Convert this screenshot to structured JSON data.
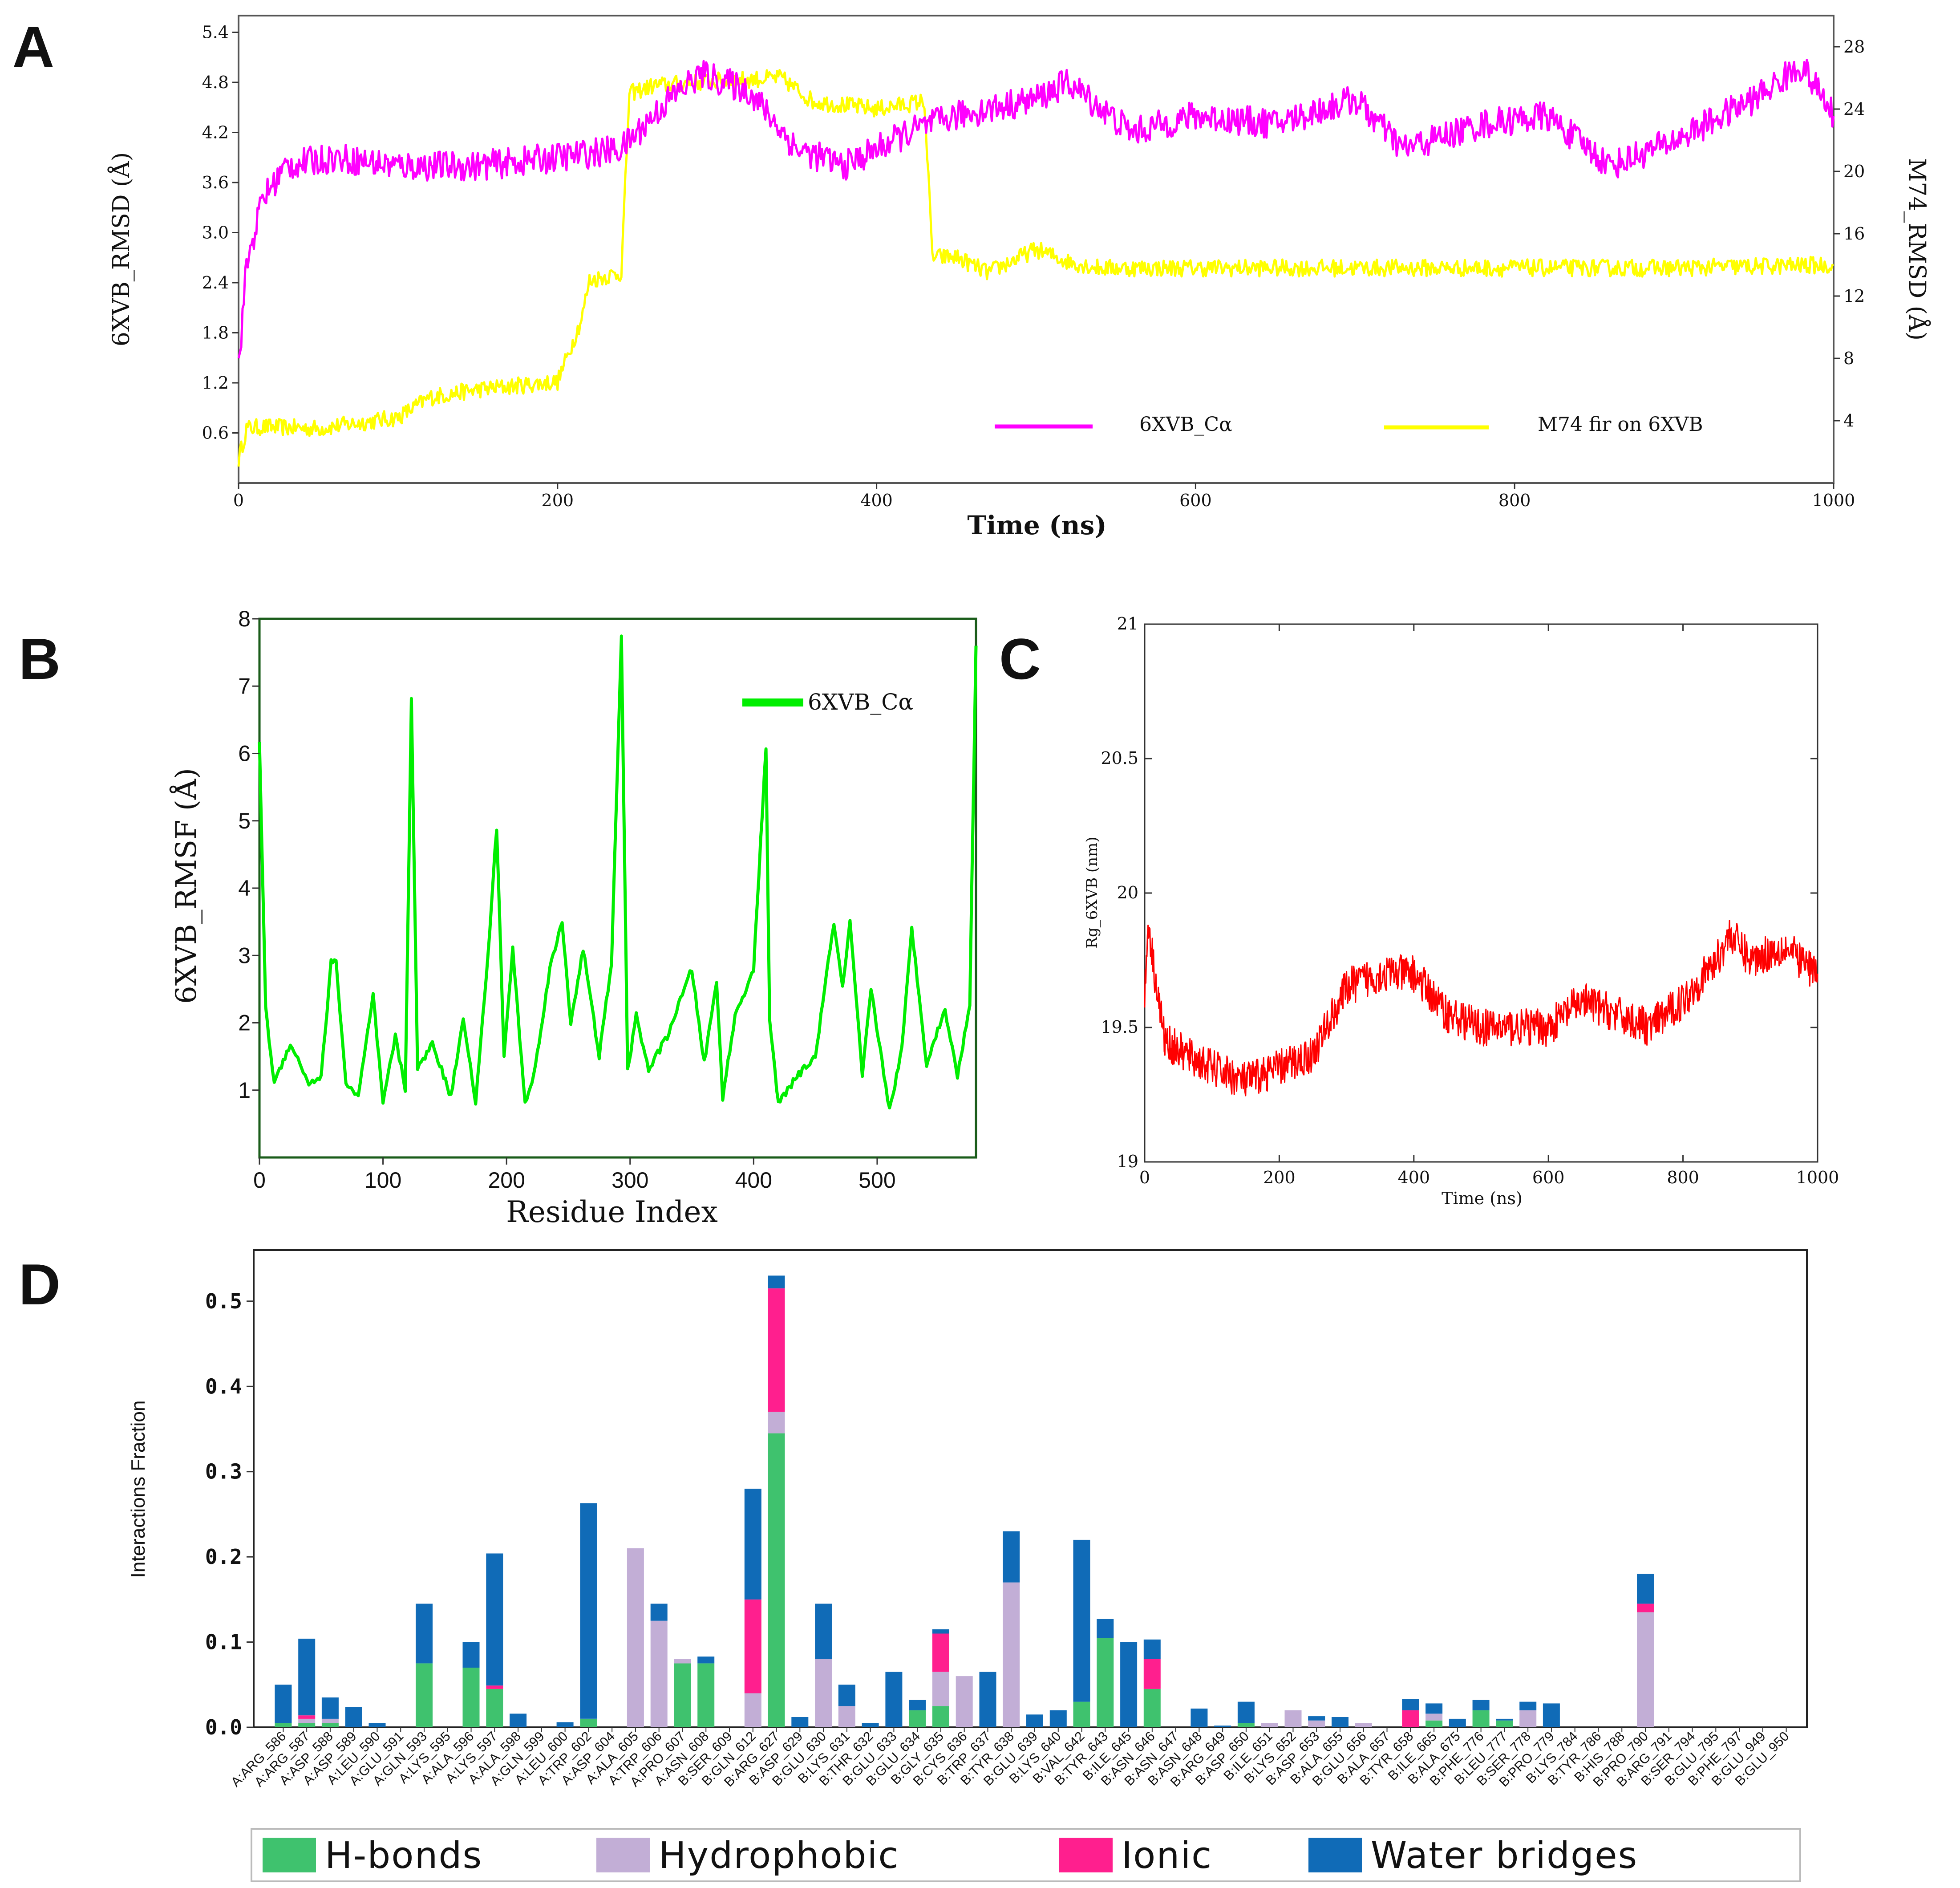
{
  "panels": {
    "a": "A",
    "b": "B",
    "c": "C",
    "d": "D"
  },
  "chart_data": [
    {
      "panel": "A",
      "type": "line",
      "xlabel": "Time (ns)",
      "ylabel_left": "6XVB_RMSD (Å)",
      "ylabel_right": "M74_RMSD (Å)",
      "xlim": [
        0,
        1000
      ],
      "ylim_left": [
        0,
        5.6
      ],
      "ylim_right": [
        0,
        30
      ],
      "x_ticks": [
        "0",
        "200",
        "400",
        "600",
        "800",
        "1000"
      ],
      "y_ticks_left": [
        "0.6",
        "1.2",
        "1.8",
        "2.4",
        "3.0",
        "3.6",
        "4.2",
        "4.8",
        "5.4"
      ],
      "y_ticks_right": [
        "4",
        "8",
        "12",
        "16",
        "20",
        "24",
        "28"
      ],
      "legend_position": "bottom-right",
      "series": [
        {
          "name": "6XVB_Cα",
          "axis": "left",
          "color": "#ff00ff",
          "x": [
            0,
            5,
            15,
            30,
            60,
            100,
            150,
            200,
            240,
            270,
            290,
            320,
            350,
            380,
            420,
            450,
            500,
            520,
            560,
            600,
            650,
            700,
            730,
            780,
            820,
            860,
            900,
            950,
            980,
            1000
          ],
          "y": [
            1.4,
            2.6,
            3.4,
            3.8,
            3.9,
            3.8,
            3.8,
            3.9,
            4.0,
            4.6,
            4.9,
            4.7,
            4.0,
            3.8,
            4.2,
            4.4,
            4.6,
            4.8,
            4.2,
            4.4,
            4.3,
            4.6,
            4.0,
            4.3,
            4.4,
            3.8,
            4.1,
            4.6,
            5.0,
            4.4
          ]
        },
        {
          "name": "M74 fir on 6XVB",
          "axis": "right",
          "color": "#ffff00",
          "x": [
            0,
            5,
            15,
            50,
            100,
            120,
            150,
            200,
            215,
            220,
            240,
            245,
            260,
            300,
            340,
            360,
            400,
            430,
            435,
            450,
            470,
            500,
            520,
            540,
            600,
            700,
            800,
            900,
            1000
          ],
          "y": [
            1.5,
            3.5,
            3.6,
            3.5,
            4.2,
            5.5,
            6.0,
            6.5,
            10.5,
            13.0,
            13.5,
            25.0,
            25.5,
            25.8,
            26.0,
            24.5,
            24.0,
            24.5,
            14.5,
            14.5,
            13.5,
            15.0,
            14.2,
            13.8,
            13.8,
            13.8,
            13.8,
            13.8,
            14.0
          ]
        }
      ]
    },
    {
      "panel": "B",
      "type": "line",
      "xlabel": "Residue Index",
      "ylabel": "6XVB_RMSF (Å)",
      "xlim": [
        0,
        580
      ],
      "ylim": [
        0,
        8
      ],
      "x_ticks": [
        "0",
        "100",
        "200",
        "300",
        "400",
        "500"
      ],
      "y_ticks": [
        "1",
        "2",
        "3",
        "4",
        "5",
        "6",
        "7",
        "8"
      ],
      "legend_position": "top-right",
      "series": [
        {
          "name": "6XVB_Cα",
          "color": "#00ee00",
          "x": [
            0,
            5,
            12,
            25,
            40,
            50,
            58,
            62,
            70,
            80,
            92,
            100,
            110,
            118,
            123,
            128,
            140,
            155,
            165,
            175,
            185,
            192,
            198,
            205,
            215,
            222,
            235,
            245,
            252,
            262,
            275,
            285,
            293,
            298,
            305,
            315,
            330,
            350,
            360,
            370,
            375,
            385,
            400,
            410,
            413,
            420,
            435,
            450,
            465,
            472,
            478,
            488,
            495,
            510,
            520,
            528,
            540,
            555,
            565,
            575,
            580
          ],
          "y": [
            6.2,
            2.2,
            1.1,
            1.7,
            1.1,
            1.2,
            2.9,
            2.9,
            1.1,
            0.9,
            2.4,
            0.8,
            1.8,
            1.0,
            6.8,
            1.3,
            1.7,
            0.9,
            2.1,
            0.8,
            3.0,
            4.9,
            1.5,
            3.1,
            0.8,
            1.2,
            2.8,
            3.5,
            2.0,
            3.1,
            1.5,
            2.9,
            7.7,
            1.3,
            2.1,
            1.3,
            1.8,
            2.8,
            1.4,
            2.6,
            0.9,
            2.1,
            2.8,
            6.1,
            2.0,
            0.8,
            1.2,
            1.5,
            3.5,
            2.5,
            3.5,
            1.2,
            2.5,
            0.7,
            1.6,
            3.4,
            1.4,
            2.2,
            1.2,
            2.3,
            7.6
          ]
        }
      ]
    },
    {
      "panel": "C",
      "type": "line",
      "xlabel": "Time (ns)",
      "ylabel": "Rg_6XVB (nm)",
      "xlim": [
        0,
        1000
      ],
      "ylim": [
        19,
        21
      ],
      "x_ticks": [
        "0",
        "200",
        "400",
        "600",
        "800",
        "1000"
      ],
      "y_ticks": [
        "19",
        "19.5",
        "20",
        "20.5",
        "21"
      ],
      "series": [
        {
          "name": "Rg",
          "color": "#ff0000",
          "x": [
            0,
            5,
            15,
            30,
            60,
            100,
            150,
            200,
            250,
            300,
            350,
            400,
            450,
            500,
            550,
            600,
            650,
            700,
            750,
            800,
            850,
            870,
            900,
            950,
            1000
          ],
          "y": [
            19.6,
            19.9,
            19.7,
            19.45,
            19.4,
            19.35,
            19.3,
            19.35,
            19.4,
            19.65,
            19.7,
            19.7,
            19.55,
            19.5,
            19.5,
            19.5,
            19.6,
            19.55,
            19.5,
            19.6,
            19.75,
            19.85,
            19.75,
            19.8,
            19.7
          ]
        }
      ]
    },
    {
      "panel": "D",
      "type": "bar",
      "stacked": true,
      "ylabel": "Interactions Fraction",
      "ylim": [
        0,
        0.56
      ],
      "y_ticks": [
        "0.0",
        "0.1",
        "0.2",
        "0.3",
        "0.4",
        "0.5"
      ],
      "legend_position": "bottom",
      "series": [
        {
          "name": "H-bonds",
          "color": "#3fc26e"
        },
        {
          "name": "Hydrophobic",
          "color": "#c2aed6"
        },
        {
          "name": "Ionic",
          "color": "#ff1f8e"
        },
        {
          "name": "Water bridges",
          "color": "#106bb7"
        }
      ],
      "categories": [
        "A:ARG_586",
        "A:ARG_587",
        "A:ASP_588",
        "A:ASP_589",
        "A:LEU_590",
        "A:GLU_591",
        "A:GLN_593",
        "A:LYS_595",
        "A:ALA_596",
        "A:LYS_597",
        "A:ALA_598",
        "A:GLN_599",
        "A:LEU_600",
        "A:TRP_602",
        "A:ASP_604",
        "A:ALA_605",
        "A:TRP_606",
        "A:PRO_607",
        "A:ASN_608",
        "B:SER_609",
        "B:GLN_612",
        "B:ARG_627",
        "B:ASP_629",
        "B:GLU_630",
        "B:LYS_631",
        "B:THR_632",
        "B:GLU_633",
        "B:GLU_634",
        "B:GLY_635",
        "B:CYS_636",
        "B:TRP_637",
        "B:TYR_638",
        "B:GLU_639",
        "B:LYS_640",
        "B:VAL_642",
        "B:TYR_643",
        "B:ILE_645",
        "B:ASN_646",
        "B:ASN_647",
        "B:ASN_648",
        "B:ARG_649",
        "B:ASP_650",
        "B:ILE_651",
        "B:LYS_652",
        "B:ASP_653",
        "B:ALA_655",
        "B:GLU_656",
        "B:ALA_657",
        "B:TYR_658",
        "B:ILE_665",
        "B:ALA_675",
        "B:PHE_776",
        "B:LEU_777",
        "B:SER_778",
        "B:PRO_779",
        "B:LYS_784",
        "B:TYR_786",
        "B:HIS_788",
        "B:PRO_790",
        "B:ARG_791",
        "B:SER_794",
        "B:GLU_795",
        "B:PHE_797",
        "B:GLU_949",
        "B:GLU_950"
      ],
      "h_bonds": [
        0.005,
        0.005,
        0.005,
        0,
        0,
        0,
        0.075,
        0,
        0.07,
        0.045,
        0,
        0,
        0,
        0.01,
        0,
        0,
        0,
        0.075,
        0.075,
        0,
        0,
        0.345,
        0,
        0,
        0,
        0,
        0,
        0.02,
        0.025,
        0,
        0,
        0,
        0,
        0,
        0.03,
        0.105,
        0,
        0.045,
        0,
        0,
        0,
        0.005,
        0,
        0,
        0,
        0,
        0,
        0,
        0,
        0.008,
        0,
        0.02,
        0.008,
        0,
        0,
        0,
        0,
        0,
        0,
        0,
        0,
        0,
        0,
        0,
        0
      ],
      "hydrophobic": [
        0,
        0.005,
        0.005,
        0,
        0,
        0,
        0,
        0,
        0,
        0,
        0,
        0,
        0,
        0,
        0,
        0.21,
        0.125,
        0.005,
        0,
        0,
        0.04,
        0.025,
        0,
        0.08,
        0.025,
        0,
        0,
        0,
        0.04,
        0.06,
        0,
        0.17,
        0,
        0,
        0,
        0,
        0,
        0,
        0,
        0,
        0,
        0,
        0.005,
        0.02,
        0.008,
        0,
        0.005,
        0,
        0,
        0.008,
        0,
        0,
        0,
        0.02,
        0,
        0,
        0,
        0,
        0.135,
        0,
        0,
        0,
        0,
        0,
        0
      ],
      "ionic": [
        0,
        0.004,
        0,
        0,
        0,
        0,
        0,
        0,
        0,
        0.004,
        0,
        0,
        0,
        0,
        0,
        0,
        0,
        0,
        0,
        0,
        0.11,
        0.145,
        0,
        0,
        0,
        0,
        0,
        0,
        0.045,
        0,
        0,
        0,
        0,
        0,
        0,
        0,
        0,
        0.035,
        0,
        0,
        0,
        0,
        0,
        0,
        0,
        0,
        0,
        0,
        0.02,
        0,
        0,
        0,
        0,
        0,
        0,
        0,
        0,
        0,
        0.01,
        0,
        0,
        0,
        0,
        0,
        0
      ],
      "water_bridges": [
        0.045,
        0.09,
        0.025,
        0.024,
        0.005,
        0,
        0.07,
        0,
        0.03,
        0.155,
        0.016,
        0,
        0.006,
        0.253,
        0,
        0,
        0.02,
        0,
        0.008,
        0,
        0.13,
        0.015,
        0.012,
        0.065,
        0.025,
        0.005,
        0.065,
        0.012,
        0.005,
        0,
        0.065,
        0.06,
        0.015,
        0.02,
        0.19,
        0.022,
        0.1,
        0.023,
        0,
        0.022,
        0.002,
        0.025,
        0,
        0,
        0.005,
        0.012,
        0,
        0,
        0.013,
        0.012,
        0.01,
        0.012,
        0.002,
        0.01,
        0.028,
        0,
        0,
        0,
        0.035,
        0,
        0,
        0,
        0,
        0,
        0
      ]
    }
  ]
}
